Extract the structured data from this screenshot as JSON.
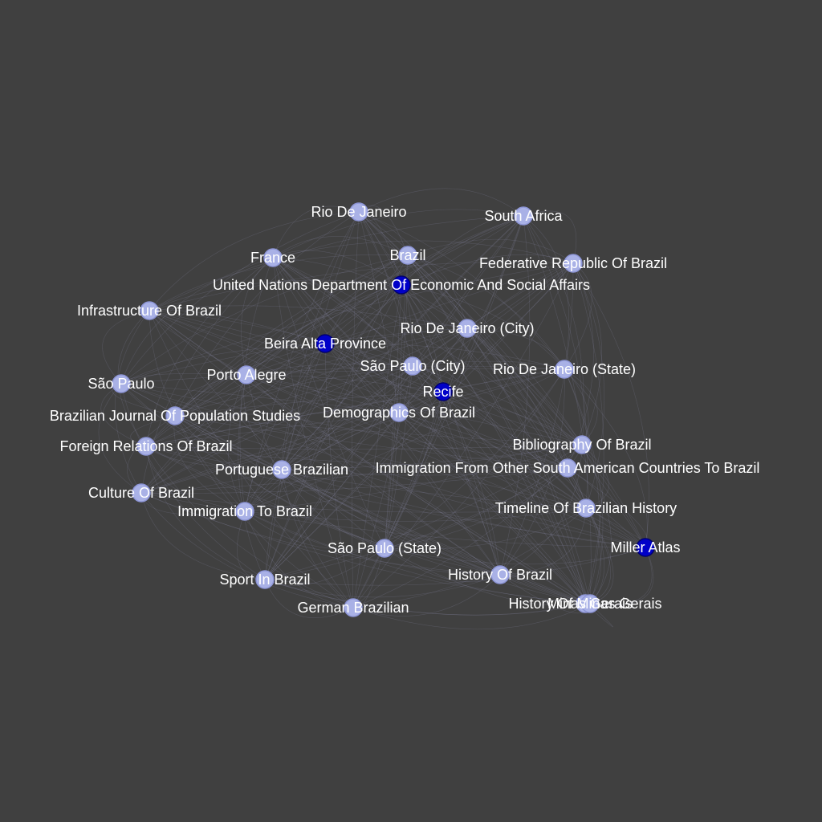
{
  "graph": {
    "background": "#404040",
    "node_color_default": "#a9b1e6",
    "node_stroke_default": "#8d95d6",
    "node_color_highlight": "#0000c8",
    "node_stroke_highlight": "#000070",
    "label_color": "#ffffff",
    "edge_color": "#9a9cc0",
    "nodes": [
      {
        "id": "rio-de-janeiro",
        "label": "Rio De Janeiro",
        "highlight": false
      },
      {
        "id": "south-africa",
        "label": "South Africa",
        "highlight": false
      },
      {
        "id": "france",
        "label": "France",
        "highlight": false
      },
      {
        "id": "brazil",
        "label": "Brazil",
        "highlight": false
      },
      {
        "id": "federative-republic-of-brazil",
        "label": "Federative Republic Of Brazil",
        "highlight": false
      },
      {
        "id": "un-desa",
        "label": "United Nations Department Of Economic And Social Affairs",
        "highlight": true
      },
      {
        "id": "infrastructure-of-brazil",
        "label": "Infrastructure Of Brazil",
        "highlight": false
      },
      {
        "id": "rio-de-janeiro-city",
        "label": "Rio De Janeiro (City)",
        "highlight": false
      },
      {
        "id": "beira-alta-province",
        "label": "Beira Alta Province",
        "highlight": true
      },
      {
        "id": "sao-paulo-city",
        "label": "São Paulo (City)",
        "highlight": false
      },
      {
        "id": "rio-de-janeiro-state",
        "label": "Rio De Janeiro (State)",
        "highlight": false
      },
      {
        "id": "sao-paulo",
        "label": "São Paulo",
        "highlight": false
      },
      {
        "id": "porto-alegre",
        "label": "Porto Alegre",
        "highlight": false
      },
      {
        "id": "recife",
        "label": "Recife",
        "highlight": true
      },
      {
        "id": "brazilian-journal-of-population-studies",
        "label": "Brazilian Journal Of Population Studies",
        "highlight": false
      },
      {
        "id": "demographics-of-brazil",
        "label": "Demographics Of Brazil",
        "highlight": false
      },
      {
        "id": "foreign-relations-of-brazil",
        "label": "Foreign Relations Of Brazil",
        "highlight": false
      },
      {
        "id": "bibliography-of-brazil",
        "label": "Bibliography Of Brazil",
        "highlight": false
      },
      {
        "id": "portuguese-brazilian",
        "label": "Portuguese Brazilian",
        "highlight": false
      },
      {
        "id": "immigration-from-other-south-american-countries",
        "label": "Immigration From Other South American Countries To Brazil",
        "highlight": false
      },
      {
        "id": "culture-of-brazil",
        "label": "Culture Of Brazil",
        "highlight": false
      },
      {
        "id": "immigration-to-brazil",
        "label": "Immigration To Brazil",
        "highlight": false
      },
      {
        "id": "timeline-of-brazilian-history",
        "label": "Timeline Of Brazilian History",
        "highlight": false
      },
      {
        "id": "miller-atlas",
        "label": "Miller Atlas",
        "highlight": true
      },
      {
        "id": "sao-paulo-state",
        "label": "São Paulo (State)",
        "highlight": false
      },
      {
        "id": "history-of-brazil",
        "label": "History Of Brazil",
        "highlight": false
      },
      {
        "id": "sport-in-brazil",
        "label": "Sport In Brazil",
        "highlight": false
      },
      {
        "id": "history-of-minas-gerais",
        "label": "History Of Minas Gerais",
        "highlight": false
      },
      {
        "id": "minas-gerais",
        "label": "Minas Gerais",
        "highlight": false
      },
      {
        "id": "german-brazilian",
        "label": "German Brazilian",
        "highlight": false
      }
    ]
  }
}
